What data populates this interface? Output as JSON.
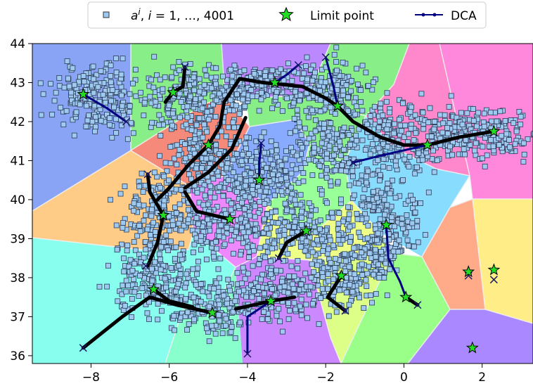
{
  "chart_data": {
    "type": "scatter",
    "title": "",
    "xlabel": "",
    "ylabel": "",
    "xlim": [
      -9.5,
      3.3
    ],
    "ylim": [
      35.8,
      44.0
    ],
    "xticks": [
      "−8",
      "−6",
      "−4",
      "−2",
      "0",
      "2"
    ],
    "xtick_values": [
      -8,
      -6,
      -4,
      -2,
      0,
      2
    ],
    "yticks": [
      "36",
      "37",
      "38",
      "39",
      "40",
      "41",
      "42",
      "43",
      "44"
    ],
    "ytick_values": [
      36,
      37,
      38,
      39,
      40,
      41,
      42,
      43,
      44
    ],
    "grid": false,
    "legend": {
      "placement": "top-center",
      "entries": [
        {
          "label": "a^i, i = 1, …, 4001",
          "marker": "square",
          "color": "#9ec9f0"
        },
        {
          "label": "Limit point",
          "marker": "star",
          "color": "#22dd22"
        },
        {
          "label": "DCA",
          "marker": "line-dot",
          "color": "#000080"
        }
      ]
    },
    "region_colors": [
      "#8aa4f5",
      "#88ee88",
      "#bb88ff",
      "#ff88cc",
      "#f58a7a",
      "#ffcc88",
      "#88ffee",
      "#ee88ff",
      "#eeff88",
      "#88ddff",
      "#ffaa88",
      "#ffee88",
      "#cc88ff",
      "#aaffaa"
    ],
    "limit_points": [
      [
        -8.2,
        42.7
      ],
      [
        -5.9,
        42.75
      ],
      [
        -3.3,
        43.0
      ],
      [
        -1.7,
        42.4
      ],
      [
        0.6,
        41.4
      ],
      [
        2.3,
        41.75
      ],
      [
        -5.0,
        41.4
      ],
      [
        -3.7,
        40.5
      ],
      [
        -6.15,
        39.6
      ],
      [
        -4.45,
        39.5
      ],
      [
        -2.5,
        39.2
      ],
      [
        -0.45,
        39.35
      ],
      [
        -6.4,
        37.7
      ],
      [
        -4.9,
        37.1
      ],
      [
        -3.4,
        37.4
      ],
      [
        -1.6,
        38.05
      ],
      [
        0.05,
        37.5
      ],
      [
        1.65,
        38.15
      ],
      [
        2.3,
        38.2
      ],
      [
        1.75,
        36.2
      ]
    ],
    "start_points": [
      [
        -7.1,
        42.0
      ],
      [
        -5.6,
        43.4
      ],
      [
        -2.7,
        43.45
      ],
      [
        -2.0,
        43.65
      ],
      [
        -1.3,
        40.95
      ],
      [
        -3.65,
        41.45
      ],
      [
        -6.55,
        40.65
      ],
      [
        -6.6,
        38.3
      ],
      [
        -4.0,
        36.05
      ],
      [
        -8.2,
        36.2
      ],
      [
        -1.5,
        37.15
      ],
      [
        0.35,
        37.3
      ],
      [
        1.65,
        38.05
      ],
      [
        2.3,
        37.95
      ],
      [
        -3.2,
        38.5
      ]
    ]
  }
}
